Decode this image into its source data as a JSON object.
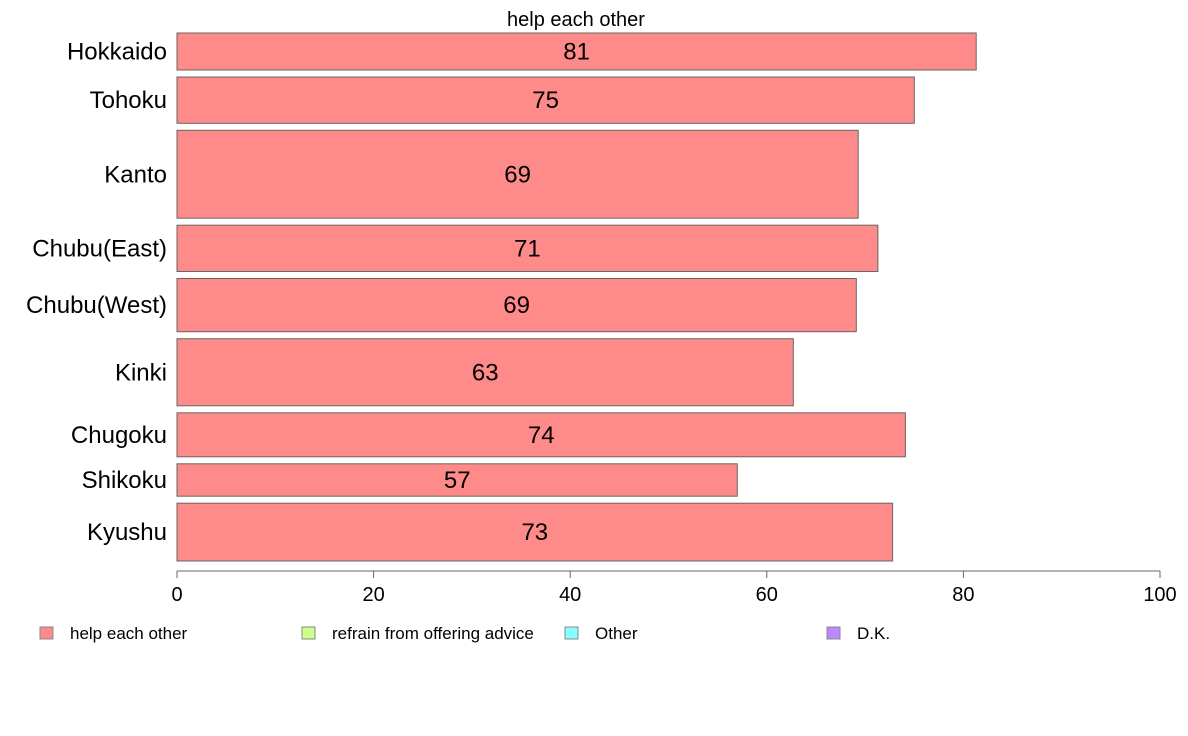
{
  "chart_data": {
    "type": "bar",
    "orientation": "horizontal",
    "title": "help each other",
    "categories": [
      "Hokkaido",
      "Tohoku",
      "Kanto",
      "Chubu(East)",
      "Chubu(West)",
      "Kinki",
      "Chugoku",
      "Shikoku",
      "Kyushu"
    ],
    "series": [
      {
        "name": "help each other",
        "values": [
          81.3,
          75.0,
          69.3,
          71.3,
          69.1,
          62.7,
          74.1,
          57.0,
          72.8
        ],
        "labels": [
          "81",
          "75",
          "69",
          "71",
          "69",
          "63",
          "74",
          "57",
          "73"
        ],
        "color": "#ff8a8a"
      }
    ],
    "relative_bar_heights": [
      0.8,
      1.0,
      1.9,
      1.0,
      1.15,
      1.45,
      0.95,
      0.7,
      1.25
    ],
    "xlim": [
      0,
      100
    ],
    "xticks": [
      0,
      20,
      40,
      60,
      80,
      100
    ],
    "xlabel": "",
    "ylabel": "",
    "grid": false,
    "legend": {
      "placement": "bottom",
      "items": [
        {
          "label": "help each other",
          "color": "#ff8a8a"
        },
        {
          "label": "refrain from offering advice",
          "color": "#ccff88"
        },
        {
          "label": "Other",
          "color": "#88ffff"
        },
        {
          "label": "D.K.",
          "color": "#bb88ff"
        }
      ]
    }
  }
}
